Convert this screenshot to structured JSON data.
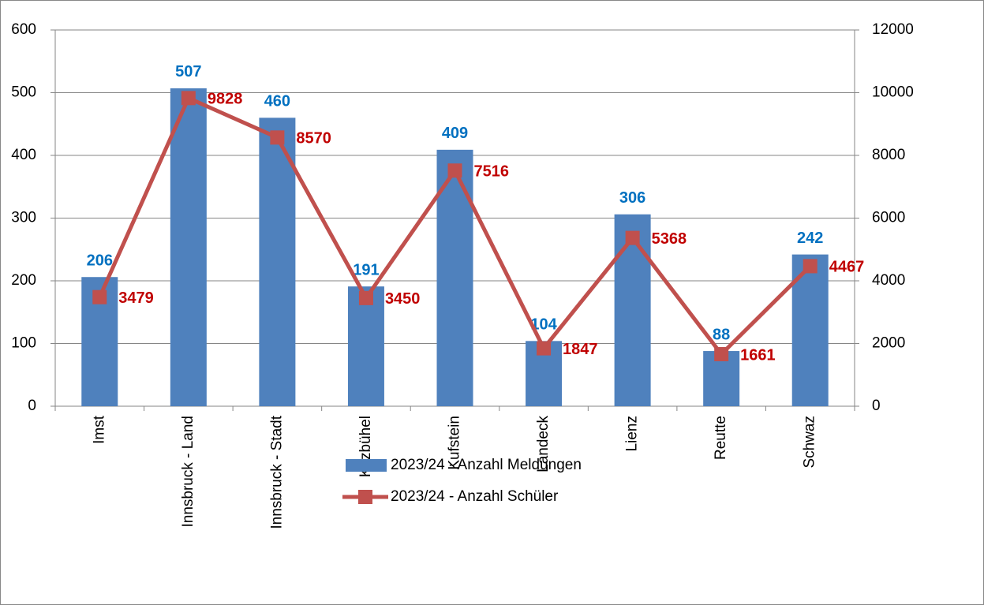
{
  "chart_data": {
    "type": "bar",
    "categories": [
      "Imst",
      "Innsbruck - Land",
      "Innsbruck - Stadt",
      "Kitzbühel",
      "Kufstein",
      "Landeck",
      "Lienz",
      "Reutte",
      "Schwaz"
    ],
    "series": [
      {
        "name": "2023/24 - Anzahl Meldungen",
        "type": "bar",
        "color": "#4f81bd",
        "label_color": "#0070c0",
        "values": [
          206,
          507,
          460,
          191,
          409,
          104,
          306,
          88,
          242
        ]
      },
      {
        "name": "2023/24 - Anzahl Schüler",
        "type": "line",
        "axis": "y2",
        "color": "#c0504d",
        "label_color": "#c00000",
        "values": [
          3479,
          9828,
          8570,
          3450,
          7516,
          1847,
          5368,
          1661,
          4467
        ]
      }
    ],
    "ylim": [
      0,
      600
    ],
    "yticks": [
      0,
      100,
      200,
      300,
      400,
      500,
      600
    ],
    "y2lim": [
      0,
      12000
    ],
    "y2ticks": [
      0,
      2000,
      4000,
      6000,
      8000,
      10000,
      12000
    ],
    "grid": true,
    "legend": "bottom"
  }
}
